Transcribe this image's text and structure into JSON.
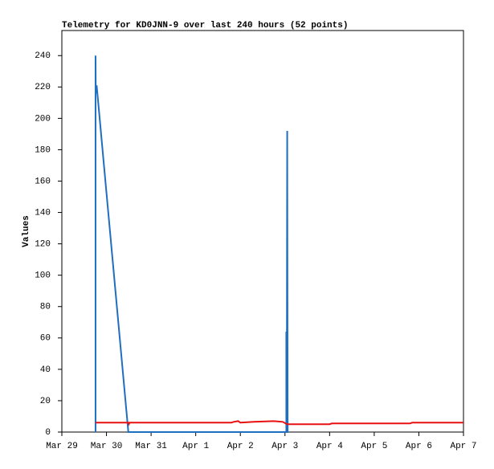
{
  "chart_data": {
    "type": "line",
    "title": "Telemetry for KD0JNN-9 over last 240 hours (52 points)",
    "y_label": "Values",
    "xlim": [
      0,
      9
    ],
    "xticks": [
      {
        "value": 0,
        "label": "Mar 29"
      },
      {
        "value": 1,
        "label": "Mar 30"
      },
      {
        "value": 2,
        "label": "Mar 31"
      },
      {
        "value": 3,
        "label": "Apr 1"
      },
      {
        "value": 4,
        "label": "Apr 2"
      },
      {
        "value": 5,
        "label": "Apr 3"
      },
      {
        "value": 6,
        "label": "Apr 4"
      },
      {
        "value": 7,
        "label": "Apr 5"
      },
      {
        "value": 8,
        "label": "Apr 6"
      },
      {
        "value": 9,
        "label": "Apr 7"
      }
    ],
    "ylim": [
      0,
      256
    ],
    "yticks": [
      0,
      20,
      40,
      60,
      80,
      100,
      120,
      140,
      160,
      180,
      200,
      220,
      240
    ],
    "series": [
      {
        "color": "#1f6fc0",
        "x": [
          0.755,
          0.755,
          0.76,
          0.78,
          1.49,
          5.03,
          5.03,
          5.04,
          5.05,
          5.06,
          5.07
        ],
        "values": [
          0,
          240,
          216,
          221,
          0,
          0,
          64,
          0,
          192,
          0,
          0
        ]
      },
      {
        "color": "#e81010",
        "x": [
          0.755,
          1.49,
          1.5,
          1.52,
          3.8,
          3.85,
          3.95,
          4.0,
          4.3,
          4.75,
          4.95,
          5.05,
          6.0,
          6.05,
          7.8,
          7.85,
          9
        ],
        "values": [
          6,
          6,
          5,
          6,
          6,
          6.5,
          7,
          6,
          6.5,
          7,
          6.5,
          5,
          5,
          5.5,
          5.5,
          6,
          6
        ]
      }
    ]
  }
}
